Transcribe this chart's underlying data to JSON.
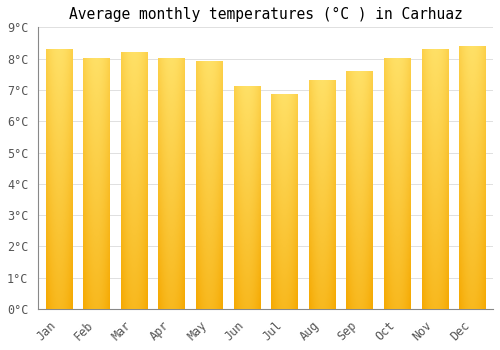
{
  "title": "Average monthly temperatures (°C ) in Carhuaz",
  "months": [
    "Jan",
    "Feb",
    "Mar",
    "Apr",
    "May",
    "Jun",
    "Jul",
    "Aug",
    "Sep",
    "Oct",
    "Nov",
    "Dec"
  ],
  "values": [
    8.3,
    8.0,
    8.2,
    8.0,
    7.9,
    7.1,
    6.85,
    7.3,
    7.6,
    8.0,
    8.3,
    8.4
  ],
  "bar_color_top": "#FFE066",
  "bar_color_bottom": "#F5A800",
  "bar_color_mid": "#FFCC33",
  "ylim": [
    0,
    9
  ],
  "yticks": [
    0,
    1,
    2,
    3,
    4,
    5,
    6,
    7,
    8,
    9
  ],
  "background_color": "#ffffff",
  "grid_color": "#e0e0e0",
  "title_fontsize": 10.5,
  "tick_fontsize": 8.5,
  "font_family": "monospace",
  "bar_width": 0.7
}
